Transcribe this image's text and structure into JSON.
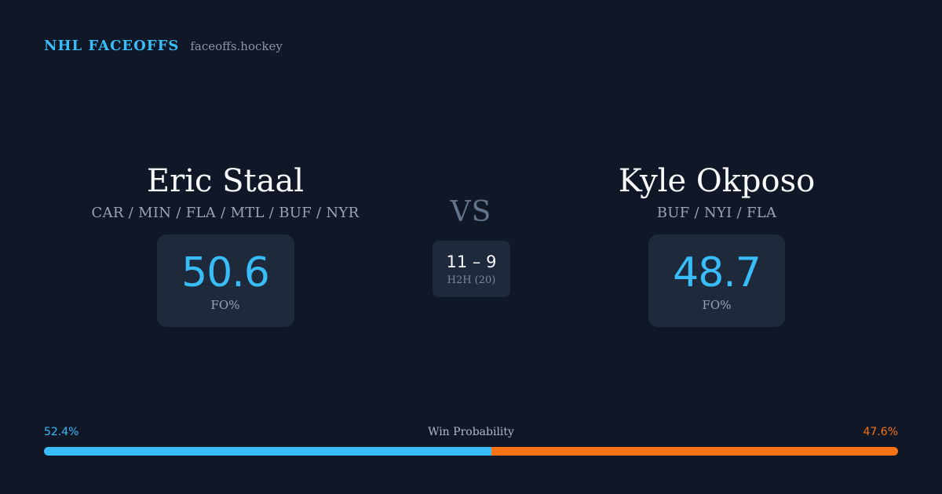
{
  "brand": {
    "name": "NHL FACEOFFS",
    "site": "faceoffs.hockey"
  },
  "player_left": {
    "name": "Eric Staal",
    "teams": "CAR / MIN / FLA / MTL / BUF / NYR",
    "fo_value": "50.6",
    "fo_label": "FO%"
  },
  "player_right": {
    "name": "Kyle Okposo",
    "teams": "BUF / NYI / FLA",
    "fo_value": "48.7",
    "fo_label": "FO%"
  },
  "versus": "VS",
  "head_to_head": {
    "score": "11 – 9",
    "label": "H2H (20)"
  },
  "win_probability": {
    "title": "Win Probability",
    "left_label": "52.4%",
    "right_label": "47.6%",
    "left_value": 52.4,
    "right_value": 47.6,
    "left_color": "#38bdf8",
    "right_color": "#f97316"
  }
}
